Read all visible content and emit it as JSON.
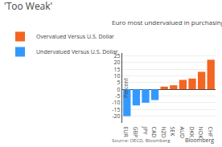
{
  "chart_data": {
    "type": "bar",
    "title": "'Too Weak'",
    "subtitle": "Euro most undervalued in purchasing-power parity terms",
    "annotations": [
      "Source: OECD, Bloomberg",
      "Bloomberg"
    ],
    "categories": [
      "EUR",
      "GBP",
      "JPY",
      "CAD",
      "NZD",
      "SEK",
      "AUD",
      "DKK",
      "NOK",
      "CHF"
    ],
    "series": [
      {
        "name": "Overvalued Versus U.S. Dollar",
        "color": "#F26522",
        "values": [
          null,
          null,
          null,
          null,
          2,
          3,
          7,
          8,
          13,
          22
        ]
      },
      {
        "name": "Undervalued Versus U.S. Dollar",
        "color": "#3399FF",
        "values": [
          -20,
          -12,
          -10,
          -8,
          null,
          null,
          null,
          null,
          null,
          null
        ]
      }
    ],
    "ylabel": "Percent",
    "ylim": [
      -25,
      27
    ],
    "yticks": [
      -20,
      -15,
      -10,
      -5,
      0,
      5,
      10,
      15,
      20,
      25
    ],
    "grid": true,
    "legend": "top left"
  }
}
